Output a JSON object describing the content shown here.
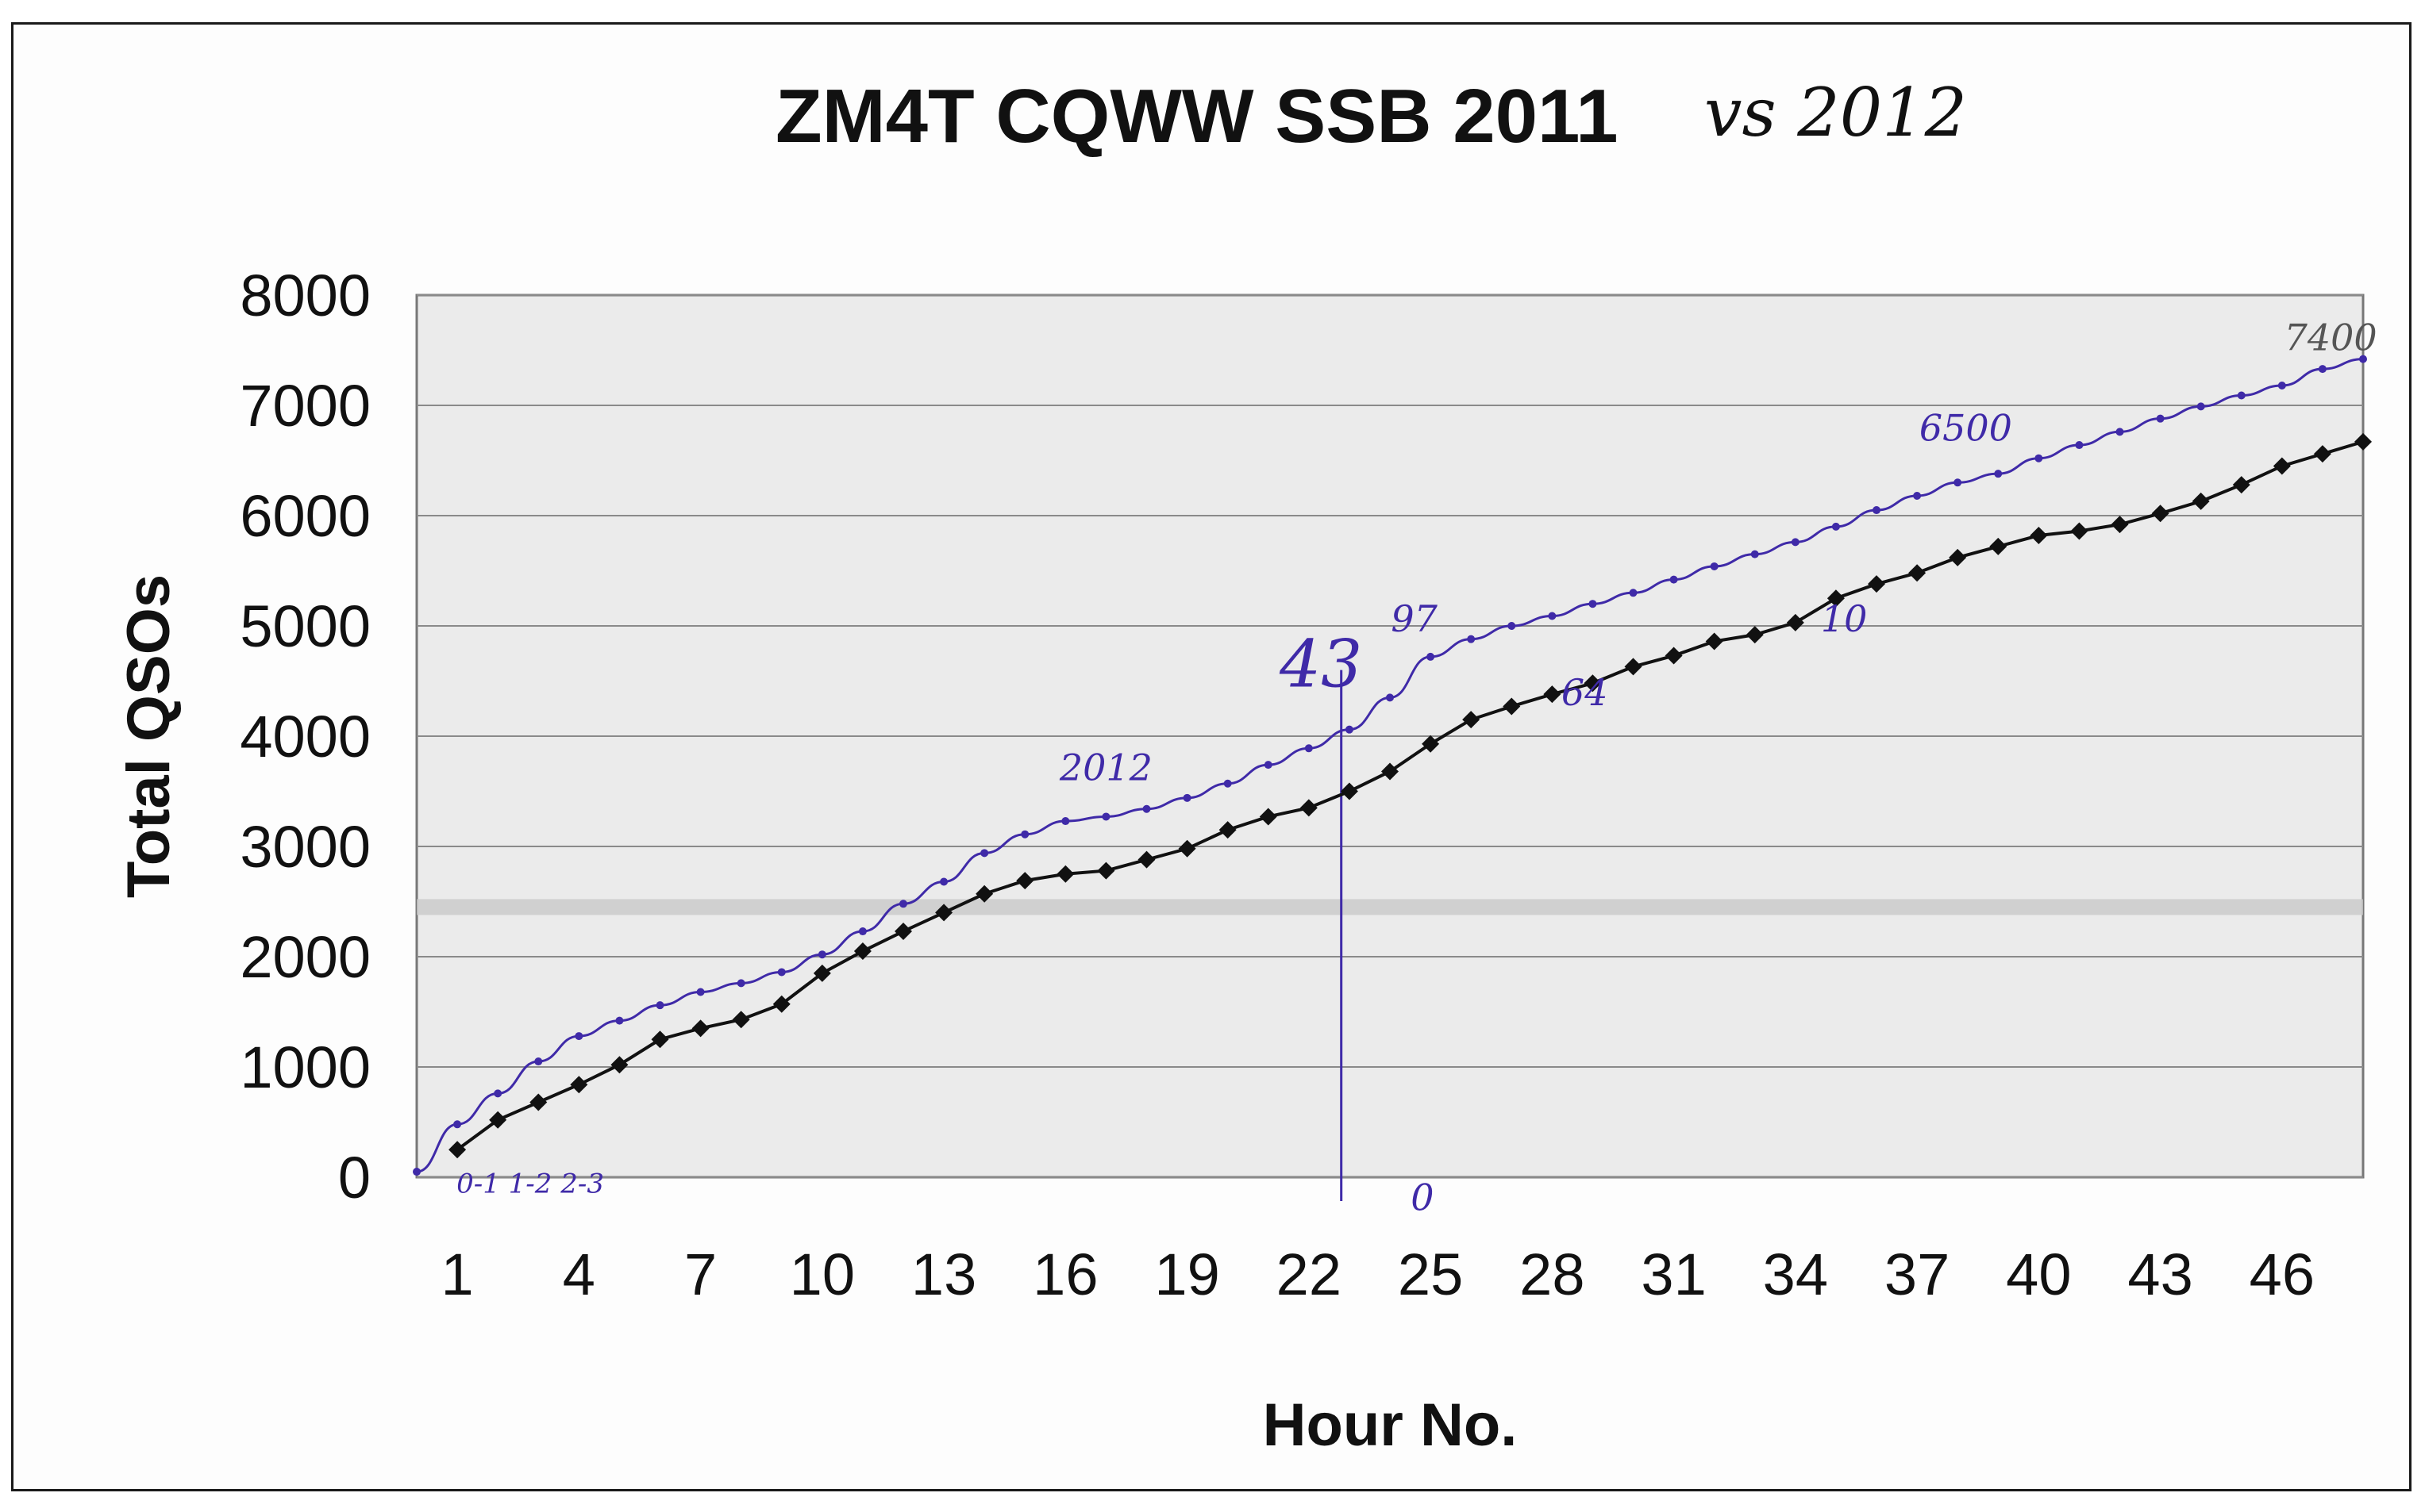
{
  "chart_data": {
    "type": "line",
    "title": "ZM4T CQWW SSB 2011",
    "title_annotation": "vs 2012",
    "xlabel": "Hour No.",
    "ylabel": "Total QSOs",
    "xlim": [
      0,
      48
    ],
    "ylim": [
      0,
      8000
    ],
    "x_ticks": [
      1,
      4,
      7,
      10,
      13,
      16,
      19,
      22,
      25,
      28,
      31,
      34,
      37,
      40,
      43,
      46
    ],
    "y_ticks": [
      0,
      1000,
      2000,
      3000,
      4000,
      5000,
      6000,
      7000,
      8000
    ],
    "grid": "horizontal",
    "legend": "none",
    "x": [
      1,
      2,
      3,
      4,
      5,
      6,
      7,
      8,
      9,
      10,
      11,
      12,
      13,
      14,
      15,
      16,
      17,
      18,
      19,
      20,
      21,
      22,
      23,
      24,
      25,
      26,
      27,
      28,
      29,
      30,
      31,
      32,
      33,
      34,
      35,
      36,
      37,
      38,
      39,
      40,
      41,
      42,
      43,
      44,
      45,
      46,
      47,
      48
    ],
    "series": [
      {
        "name": "",
        "color": "#111111",
        "marker": "diamond",
        "values": [
          250,
          520,
          680,
          840,
          1020,
          1250,
          1350,
          1430,
          1570,
          1850,
          2050,
          2230,
          2400,
          2570,
          2690,
          2750,
          2780,
          2880,
          2980,
          3150,
          3270,
          3350,
          3500,
          3680,
          3930,
          4150,
          4270,
          4380,
          4480,
          4630,
          4730,
          4860,
          4920,
          5030,
          5250,
          5380,
          5480,
          5620,
          5720,
          5820,
          5860,
          5920,
          6020,
          6130,
          6280,
          6450,
          6560,
          6670
        ]
      },
      {
        "name": "2012",
        "color": "#3f2aa8",
        "marker": "dot",
        "x": [
          0,
          1,
          2,
          3,
          4,
          5,
          6,
          7,
          8,
          9,
          10,
          11,
          12,
          13,
          14,
          15,
          16,
          17,
          18,
          19,
          20,
          21,
          22,
          23,
          24,
          25,
          26,
          27,
          28,
          29,
          30,
          31,
          32,
          33,
          34,
          35,
          36,
          37,
          38,
          39,
          40,
          41,
          42,
          43,
          44,
          45,
          46,
          47,
          48
        ],
        "values": [
          50,
          480,
          760,
          1050,
          1280,
          1420,
          1560,
          1680,
          1760,
          1860,
          2020,
          2230,
          2480,
          2680,
          2940,
          3110,
          3230,
          3270,
          3340,
          3440,
          3570,
          3740,
          3890,
          4060,
          4350,
          4720,
          4880,
          5000,
          5090,
          5200,
          5300,
          5420,
          5540,
          5650,
          5760,
          5900,
          6050,
          6180,
          6300,
          6380,
          6520,
          6640,
          6760,
          6880,
          6990,
          7090,
          7180,
          7330,
          7420
        ]
      }
    ],
    "annotations": [
      {
        "text": "2012",
        "x": 17,
        "y": 3600,
        "color": "#3f2aa8"
      },
      {
        "text": "43",
        "x": 22.3,
        "y": 4450,
        "color": "#3f2aa8"
      },
      {
        "text": "97",
        "x": 24.6,
        "y": 4950,
        "color": "#3f2aa8"
      },
      {
        "text": "64",
        "x": 28.8,
        "y": 4280,
        "color": "#3f2aa8"
      },
      {
        "text": "10",
        "x": 35.2,
        "y": 4950,
        "color": "#3f2aa8"
      },
      {
        "text": "6500",
        "x": 38.2,
        "y": 6680,
        "color": "#3f2aa8"
      },
      {
        "text": "7400",
        "x": 47.2,
        "y": 7500,
        "color": "#555555"
      },
      {
        "text": "0",
        "x": 24.8,
        "y": -300,
        "color": "#3f2aa8"
      },
      {
        "text": "0-1 1-2 2-3",
        "x": 2.8,
        "y": -140,
        "color": "#3f2aa8"
      }
    ],
    "marker_line_x": 22.8
  }
}
